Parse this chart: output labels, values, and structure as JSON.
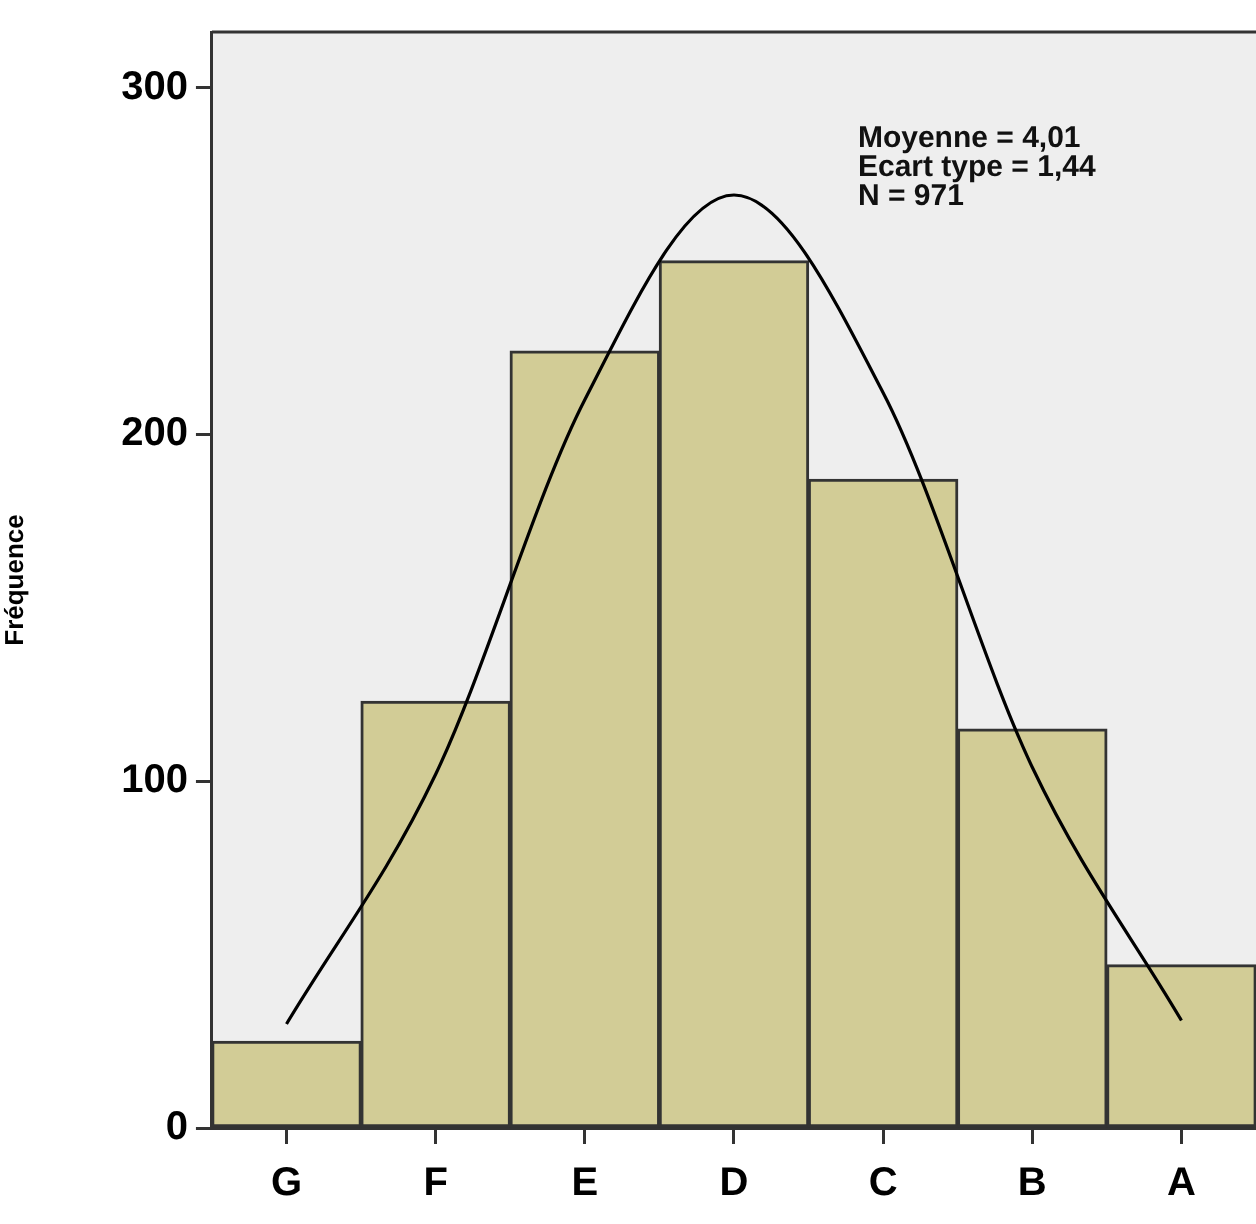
{
  "chart_data": {
    "type": "bar",
    "ylabel": "Fréquence",
    "categories": [
      "G",
      "F",
      "E",
      "D",
      "C",
      "B",
      "A"
    ],
    "values": [
      25,
      123,
      224,
      250,
      187,
      115,
      47
    ],
    "color": "#d2cc96",
    "ylim": [
      0,
      316
    ],
    "yticks": [
      0,
      100,
      200,
      300
    ],
    "series": [
      {
        "type": "line",
        "color": "#000000",
        "x": [
          "G",
          "F",
          "E",
          "D",
          "C",
          "B",
          "A"
        ],
        "values": [
          30,
          102,
          210,
          269,
          212,
          104,
          31
        ]
      }
    ],
    "marker": "none",
    "annotations": [
      "Moyenne = 4,01",
      "Ecart type = 1,44",
      "N = 971"
    ],
    "legend": false,
    "grid": false
  }
}
